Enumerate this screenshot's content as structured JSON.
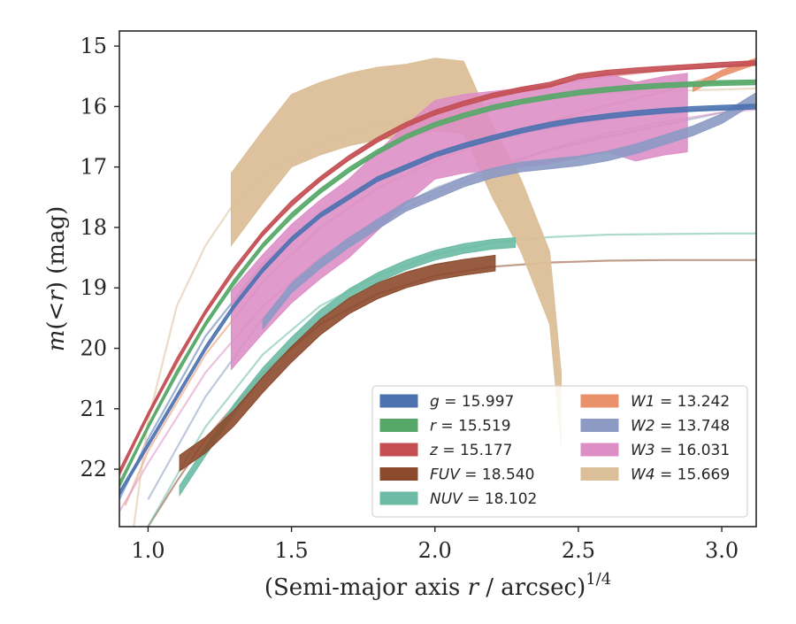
{
  "chart_data": {
    "type": "line",
    "xlabel": "(Semi-major axis r / arcsec)^1/4",
    "xlabel_parts": {
      "pre": "(Semi-major axis ",
      "var": "r",
      "post": " / arcsec)",
      "sup": "1/4"
    },
    "ylabel": "m(< r) (mag)",
    "ylabel_parts": {
      "m": "m",
      "mid": "(<",
      "r": "r",
      "post": ") (mag)"
    },
    "xlim": [
      0.9,
      3.12
    ],
    "ylim": [
      22.95,
      14.75
    ],
    "y_inverted": true,
    "x_ticks": [
      1.0,
      1.5,
      2.0,
      2.5,
      3.0
    ],
    "x_tick_labels": [
      "1.0",
      "1.5",
      "2.0",
      "2.5",
      "3.0"
    ],
    "y_ticks": [
      15,
      16,
      17,
      18,
      19,
      20,
      21,
      22
    ],
    "y_tick_labels": [
      "15",
      "16",
      "17",
      "18",
      "19",
      "20",
      "21",
      "22"
    ],
    "grid": false,
    "legend_position": "lower-right",
    "series": [
      {
        "name": "g",
        "label_value": "= 15.997",
        "color": "#4c72b0",
        "band_x": [
          0.9,
          1.0,
          1.1,
          1.2,
          1.3,
          1.4,
          1.5,
          1.6,
          1.7,
          1.8,
          1.9,
          2.0,
          2.1,
          2.2,
          2.3,
          2.4,
          2.5,
          2.6,
          2.7,
          2.8,
          2.9,
          3.0,
          3.12
        ],
        "band_mid": [
          22.4,
          21.6,
          20.8,
          20.0,
          19.3,
          18.7,
          18.2,
          17.8,
          17.5,
          17.2,
          17.0,
          16.8,
          16.65,
          16.52,
          16.4,
          16.3,
          16.22,
          16.16,
          16.11,
          16.07,
          16.04,
          16.02,
          16.0
        ],
        "band_width": 0.08,
        "model_x": [
          0.9,
          1.0,
          1.2,
          1.4,
          1.6,
          1.8,
          2.0,
          2.2,
          2.4,
          2.6,
          2.8,
          3.0,
          3.12
        ],
        "model_y": [
          22.5,
          21.5,
          19.8,
          18.6,
          17.8,
          17.2,
          16.8,
          16.55,
          16.35,
          16.2,
          16.1,
          16.04,
          16.0
        ]
      },
      {
        "name": "r",
        "label_value": "= 15.519",
        "color": "#55a868",
        "band_x": [
          0.9,
          1.0,
          1.1,
          1.2,
          1.3,
          1.4,
          1.5,
          1.6,
          1.7,
          1.8,
          1.9,
          2.0,
          2.1,
          2.2,
          2.3,
          2.4,
          2.5,
          2.6,
          2.7,
          2.8,
          2.9,
          3.0,
          3.12
        ],
        "band_mid": [
          22.25,
          21.3,
          20.4,
          19.6,
          18.9,
          18.3,
          17.8,
          17.4,
          17.05,
          16.75,
          16.5,
          16.3,
          16.15,
          16.02,
          15.92,
          15.84,
          15.77,
          15.72,
          15.68,
          15.65,
          15.63,
          15.61,
          15.6
        ],
        "band_width": 0.08,
        "model_x": [
          0.9,
          1.0,
          1.2,
          1.4,
          1.6,
          1.8,
          2.0,
          2.2,
          2.4,
          2.6,
          2.8,
          3.0,
          3.12
        ],
        "model_y": [
          22.3,
          21.3,
          19.6,
          18.3,
          17.4,
          16.75,
          16.3,
          16.0,
          15.84,
          15.72,
          15.65,
          15.61,
          15.6
        ]
      },
      {
        "name": "z",
        "label_value": "= 15.177",
        "color": "#c44e52",
        "band_x": [
          0.9,
          1.0,
          1.1,
          1.2,
          1.3,
          1.4,
          1.5,
          1.6,
          1.7,
          1.8,
          1.9,
          2.0,
          2.1,
          2.2,
          2.3,
          2.4,
          2.5,
          2.6,
          2.7,
          2.8,
          2.9,
          3.0,
          3.12
        ],
        "band_mid": [
          22.05,
          21.1,
          20.2,
          19.4,
          18.7,
          18.1,
          17.6,
          17.2,
          16.85,
          16.55,
          16.3,
          16.1,
          15.95,
          15.82,
          15.72,
          15.64,
          15.5,
          15.44,
          15.4,
          15.37,
          15.34,
          15.31,
          15.28
        ],
        "band_width": 0.08,
        "model_x": [
          0.9,
          1.0,
          1.2,
          1.4,
          1.6,
          1.8,
          2.0,
          2.2,
          2.4,
          2.6,
          2.8,
          3.0,
          3.12
        ],
        "model_y": [
          22.1,
          21.1,
          19.4,
          18.1,
          17.2,
          16.55,
          16.1,
          15.82,
          15.64,
          15.5,
          15.4,
          15.33,
          15.28
        ]
      },
      {
        "name": "FUV",
        "label_value": "= 18.540",
        "color": "#8c4a2c",
        "band_x": [
          1.11,
          1.2,
          1.3,
          1.4,
          1.5,
          1.6,
          1.7,
          1.8,
          1.9,
          2.0,
          2.1,
          2.21
        ],
        "band_mid": [
          21.9,
          21.6,
          21.15,
          20.6,
          20.1,
          19.65,
          19.3,
          19.05,
          18.87,
          18.74,
          18.66,
          18.59
        ],
        "band_width": 0.26,
        "model_x": [
          1.0,
          1.1,
          1.2,
          1.4,
          1.6,
          1.8,
          2.0,
          2.2,
          2.4,
          2.6,
          2.8,
          3.0,
          3.12
        ],
        "model_y": [
          22.95,
          22.2,
          21.5,
          20.4,
          19.6,
          19.1,
          18.8,
          18.65,
          18.58,
          18.55,
          18.54,
          18.54,
          18.54
        ]
      },
      {
        "name": "NUV",
        "label_value": "= 18.102",
        "color": "#6cbba5",
        "band_x": [
          1.11,
          1.2,
          1.3,
          1.4,
          1.5,
          1.6,
          1.7,
          1.8,
          1.9,
          2.0,
          2.1,
          2.2,
          2.28
        ],
        "band_mid": [
          22.35,
          21.7,
          21.0,
          20.4,
          19.9,
          19.45,
          19.1,
          18.83,
          18.62,
          18.46,
          18.35,
          18.28,
          18.25
        ],
        "band_width": 0.16,
        "model_x": [
          1.0,
          1.1,
          1.2,
          1.4,
          1.6,
          1.8,
          2.0,
          2.2,
          2.4,
          2.6,
          2.8,
          3.0,
          3.12
        ],
        "model_y": [
          22.95,
          22.1,
          21.3,
          20.1,
          19.3,
          18.8,
          18.45,
          18.25,
          18.16,
          18.12,
          18.11,
          18.1,
          18.1
        ]
      },
      {
        "name": "W1",
        "label_value": "= 13.242",
        "color": "#e8916b",
        "band_x": [
          2.9,
          3.0,
          3.12
        ],
        "band_mid": [
          15.7,
          15.45,
          15.25
        ],
        "band_width": 0.1,
        "model_x": [
          0.92,
          1.0,
          1.2,
          1.4,
          1.6,
          1.8,
          2.0,
          2.2,
          2.4,
          2.6,
          2.8,
          3.0,
          3.12
        ],
        "model_y": [
          22.6,
          21.7,
          20.1,
          18.9,
          18.0,
          17.35,
          16.9,
          16.55,
          16.25,
          15.98,
          15.75,
          15.45,
          15.25
        ]
      },
      {
        "name": "W2",
        "label_value": "= 13.748",
        "color": "#8c9ac4",
        "band_x": [
          1.4,
          1.5,
          1.6,
          1.7,
          1.8,
          1.9,
          2.0,
          2.1,
          2.2,
          2.3,
          2.4,
          2.5,
          2.6,
          2.7,
          2.8,
          2.9,
          3.0,
          3.12
        ],
        "band_mid": [
          19.6,
          19.0,
          18.6,
          18.25,
          17.95,
          17.65,
          17.45,
          17.25,
          17.1,
          17.0,
          16.95,
          16.9,
          16.82,
          16.7,
          16.55,
          16.4,
          16.2,
          15.85
        ],
        "band_width": 0.16,
        "model_x": [
          1.0,
          1.2,
          1.4,
          1.6,
          1.8,
          2.0,
          2.2,
          2.4,
          2.6,
          2.8,
          3.0,
          3.12
        ],
        "model_y": [
          22.5,
          20.8,
          19.5,
          18.55,
          17.85,
          17.35,
          17.0,
          16.72,
          16.5,
          16.3,
          16.1,
          16.0
        ]
      },
      {
        "name": "W3",
        "label_value": "= 16.031",
        "color": "#dd8fc5",
        "band_x": [
          1.29,
          1.4,
          1.5,
          1.6,
          1.7,
          1.8,
          1.9,
          2.0,
          2.1,
          2.2,
          2.3,
          2.4,
          2.5,
          2.6,
          2.7,
          2.8,
          2.88
        ],
        "band_mid": [
          19.7,
          19.1,
          18.6,
          18.2,
          17.85,
          17.4,
          16.95,
          16.55,
          16.45,
          16.4,
          16.35,
          16.3,
          16.2,
          16.1,
          16.25,
          16.15,
          16.1
        ],
        "band_width": 1.3,
        "model_x": [
          0.9,
          1.0,
          1.2,
          1.4,
          1.6,
          1.8,
          2.0,
          2.2,
          2.4,
          2.6,
          2.8,
          3.0,
          3.12
        ],
        "model_y": [
          22.7,
          21.9,
          20.4,
          19.3,
          18.5,
          17.9,
          17.45,
          17.05,
          16.7,
          16.45,
          16.25,
          16.1,
          16.05
        ]
      },
      {
        "name": "W4",
        "label_value": "= 15.669",
        "color": "#dbbf98",
        "band_x": [
          1.29,
          1.4,
          1.5,
          1.6,
          1.7,
          1.8,
          1.9,
          2.0,
          2.1,
          2.2,
          2.3,
          2.4,
          2.44
        ],
        "band_mid": [
          17.7,
          17.0,
          16.4,
          16.2,
          16.05,
          15.95,
          15.9,
          15.8,
          15.85,
          16.9,
          17.8,
          19.0,
          21.0
        ],
        "band_width": 1.2,
        "model_x": [
          0.95,
          1.0,
          1.1,
          1.2,
          1.3,
          1.4,
          1.6,
          1.8,
          2.0,
          2.2,
          2.4,
          2.6,
          2.8,
          3.0,
          3.12
        ],
        "model_y": [
          22.95,
          21.2,
          19.3,
          18.3,
          17.6,
          17.1,
          16.6,
          16.3,
          16.1,
          15.95,
          15.85,
          15.78,
          15.74,
          15.72,
          15.7
        ]
      }
    ]
  }
}
